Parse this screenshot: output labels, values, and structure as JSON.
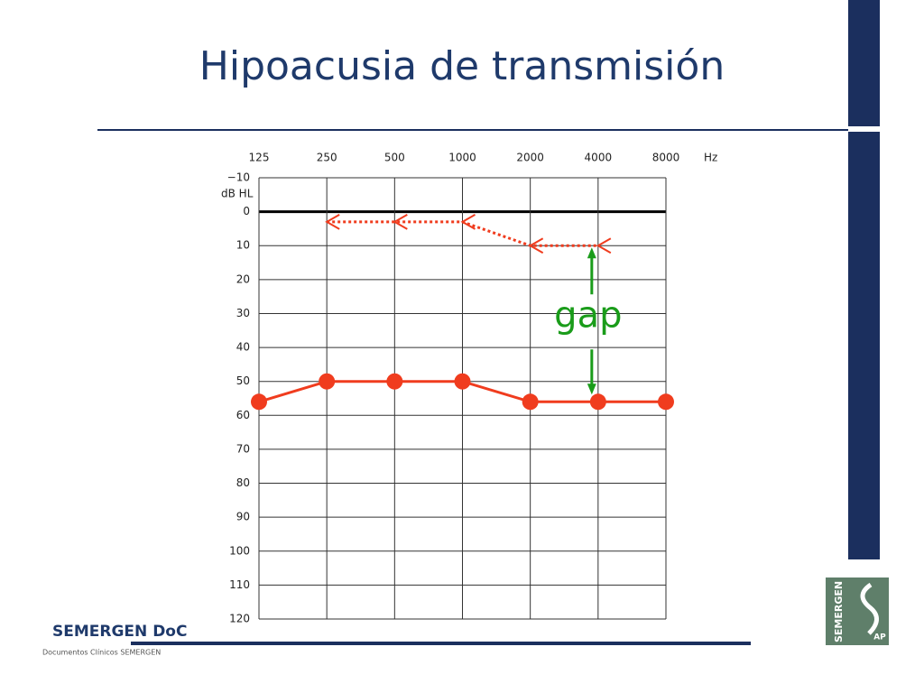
{
  "chart_data": {
    "type": "line",
    "title": "Hipoacusia de transmisión",
    "x_unit": "Hz",
    "y_label": "dB HL",
    "categories": [
      "125",
      "250",
      "500",
      "1000",
      "2000",
      "4000",
      "8000"
    ],
    "series": [
      {
        "color": "#f03c1e",
        "marker": "circle",
        "linestyle": "solid",
        "values": [
          56,
          50,
          50,
          50,
          56,
          56,
          56
        ]
      },
      {
        "color": "#f03c1e",
        "marker": "<",
        "linestyle": "dotted",
        "values": [
          null,
          3,
          3,
          3,
          10,
          10,
          null
        ]
      }
    ],
    "ylim": [
      -10,
      120
    ],
    "inverted_y": true,
    "yticks": [
      {
        "value": -10,
        "label": "−10"
      },
      0,
      10,
      20,
      30,
      40,
      50,
      60,
      70,
      80,
      90,
      100,
      110,
      120
    ],
    "grid": true,
    "annotation": {
      "text": "gap",
      "color": "#1a9c1a"
    }
  },
  "footer": {
    "brand": "SEMERGEN DoC",
    "subtitle": "Documentos Clínicos SEMERGEN",
    "logo_text": "SEMERGEN",
    "logo_badge": "AP"
  }
}
